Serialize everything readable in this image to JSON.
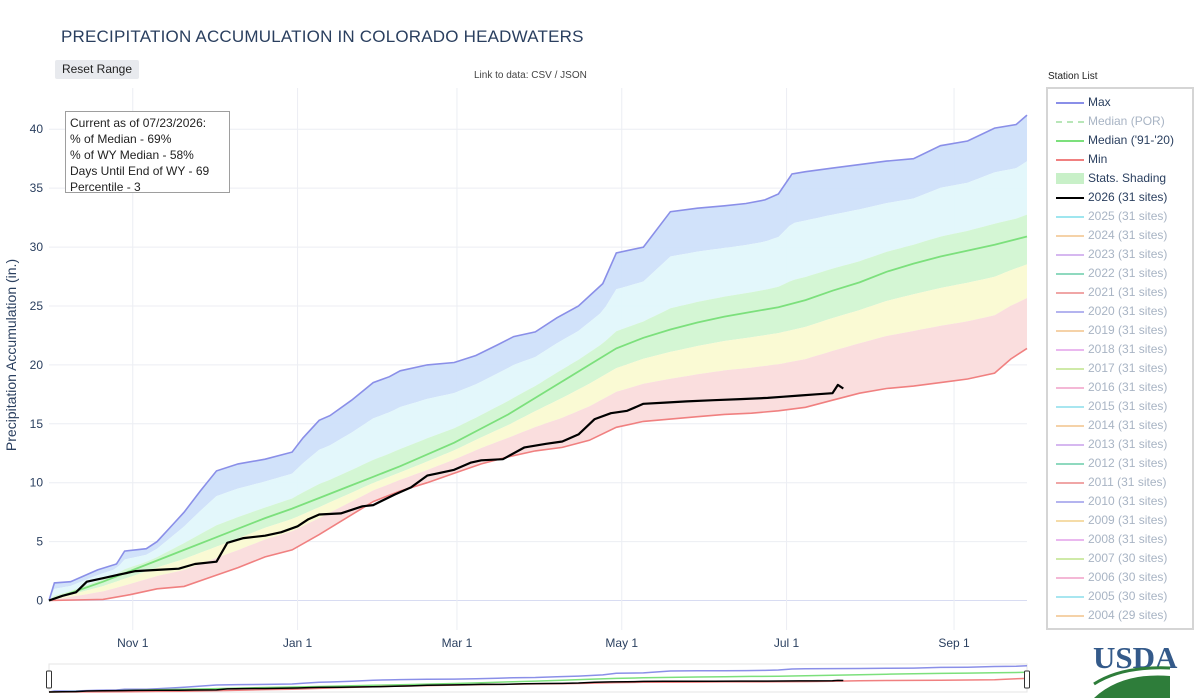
{
  "title": "PRECIPITATION ACCUMULATION IN COLORADO HEADWATERS",
  "reset_label": "Reset Range",
  "datalink": {
    "prefix": "Link to data: ",
    "csv": "CSV",
    "sep": " / ",
    "json": "JSON"
  },
  "station_list_label": "Station List",
  "annotation": {
    "line1": "Current as of 07/23/2026:",
    "line2": "% of Median - 69%",
    "line3": "% of WY Median - 58%",
    "line4": "Days Until End of WY - 69",
    "line5": "Percentile - 3"
  },
  "logo_text": "USDA",
  "colors": {
    "max": "#8a8fe8",
    "median": "#90ee90",
    "min": "#f08080",
    "current": "#000000",
    "band_blue": "#cfe0fa",
    "band_cyan": "#e1f7fb",
    "band_green": "#d2f5d2",
    "band_yellow": "#fafad2",
    "band_pink": "#fadcdc"
  },
  "legend": [
    {
      "label": "Max",
      "color": "#8a8fe8",
      "style": "solid",
      "muted": false
    },
    {
      "label": "Median (POR)",
      "color": "#b8e6b8",
      "style": "dash",
      "muted": true
    },
    {
      "label": "Median ('91-'20)",
      "color": "#7ce07c",
      "style": "solid",
      "muted": false
    },
    {
      "label": "Min",
      "color": "#f08080",
      "style": "solid",
      "muted": false
    },
    {
      "label": "Stats. Shading",
      "color": "#c8f0c8",
      "style": "box",
      "muted": false
    },
    {
      "label": "2026 (31 sites)",
      "color": "#000000",
      "style": "solid",
      "muted": false
    },
    {
      "label": "2025 (31 sites)",
      "color": "#9fe6ef",
      "style": "solid",
      "muted": true
    },
    {
      "label": "2024 (31 sites)",
      "color": "#f5d2a8",
      "style": "solid",
      "muted": true
    },
    {
      "label": "2023 (31 sites)",
      "color": "#d6b8f0",
      "style": "solid",
      "muted": true
    },
    {
      "label": "2022 (31 sites)",
      "color": "#8fd9bf",
      "style": "solid",
      "muted": true
    },
    {
      "label": "2021 (31 sites)",
      "color": "#f0a6a6",
      "style": "solid",
      "muted": true
    },
    {
      "label": "2020 (31 sites)",
      "color": "#b4b4ef",
      "style": "solid",
      "muted": true
    },
    {
      "label": "2019 (31 sites)",
      "color": "#f5d2a8",
      "style": "solid",
      "muted": true
    },
    {
      "label": "2018 (31 sites)",
      "color": "#eab8ef",
      "style": "solid",
      "muted": true
    },
    {
      "label": "2017 (31 sites)",
      "color": "#cfeaa8",
      "style": "solid",
      "muted": true
    },
    {
      "label": "2016 (31 sites)",
      "color": "#f4b8d6",
      "style": "solid",
      "muted": true
    },
    {
      "label": "2015 (31 sites)",
      "color": "#a8e6f0",
      "style": "solid",
      "muted": true
    },
    {
      "label": "2014 (31 sites)",
      "color": "#f5d2a8",
      "style": "solid",
      "muted": true
    },
    {
      "label": "2013 (31 sites)",
      "color": "#d6b8f0",
      "style": "solid",
      "muted": true
    },
    {
      "label": "2012 (31 sites)",
      "color": "#8fd9bf",
      "style": "solid",
      "muted": true
    },
    {
      "label": "2011 (31 sites)",
      "color": "#f0a6a6",
      "style": "solid",
      "muted": true
    },
    {
      "label": "2010 (31 sites)",
      "color": "#b4b4ef",
      "style": "solid",
      "muted": true
    },
    {
      "label": "2009 (31 sites)",
      "color": "#f5dca8",
      "style": "solid",
      "muted": true
    },
    {
      "label": "2008 (31 sites)",
      "color": "#eab8ef",
      "style": "solid",
      "muted": true
    },
    {
      "label": "2007 (30 sites)",
      "color": "#cfeaa8",
      "style": "solid",
      "muted": true
    },
    {
      "label": "2006 (30 sites)",
      "color": "#f4b8d6",
      "style": "solid",
      "muted": true
    },
    {
      "label": "2005 (30 sites)",
      "color": "#a8e6f0",
      "style": "solid",
      "muted": true
    },
    {
      "label": "2004 (29 sites)",
      "color": "#f5d2a8",
      "style": "solid",
      "muted": true
    }
  ],
  "chart_data": {
    "type": "area",
    "title": "PRECIPITATION ACCUMULATION IN COLORADO HEADWATERS",
    "ylabel": "Precipitation Accumulation (in.)",
    "ylim": [
      -2.5,
      43.5
    ],
    "xlim_days": [
      0,
      362
    ],
    "yticks": [
      0,
      5,
      10,
      15,
      20,
      25,
      30,
      35,
      40
    ],
    "xticks": [
      {
        "label": "Nov 1",
        "day": 31
      },
      {
        "label": "Jan 1",
        "day": 92
      },
      {
        "label": "Mar 1",
        "day": 151
      },
      {
        "label": "May 1",
        "day": 212
      },
      {
        "label": "Jul 1",
        "day": 273
      },
      {
        "label": "Sep 1",
        "day": 335
      }
    ],
    "grid": true,
    "legend_position": "right",
    "series": [
      {
        "name": "Max",
        "x": [
          0,
          2,
          8,
          12,
          18,
          25,
          28,
          36,
          40,
          46,
          50,
          56,
          62,
          70,
          80,
          90,
          94,
          100,
          104,
          112,
          120,
          126,
          130,
          140,
          150,
          158,
          166,
          172,
          180,
          188,
          196,
          205,
          210,
          220,
          230,
          240,
          250,
          258,
          265,
          270,
          275,
          280,
          290,
          300,
          310,
          320,
          330,
          340,
          350,
          358,
          362
        ],
        "y": [
          0,
          1.5,
          1.6,
          2.0,
          2.6,
          3.1,
          4.2,
          4.4,
          5.0,
          6.5,
          7.5,
          9.3,
          11.0,
          11.6,
          12.0,
          12.6,
          13.8,
          15.3,
          15.7,
          17.0,
          18.5,
          19.0,
          19.5,
          20.0,
          20.2,
          20.8,
          21.7,
          22.4,
          22.8,
          24.0,
          25.0,
          26.9,
          29.5,
          30.0,
          33.0,
          33.3,
          33.5,
          33.7,
          34.0,
          34.5,
          36.2,
          36.4,
          36.7,
          37.0,
          37.3,
          37.5,
          38.6,
          39.0,
          40.1,
          40.4,
          41.2
        ]
      },
      {
        "name": "Median ('91-'20)",
        "x": [
          0,
          10,
          20,
          30,
          40,
          50,
          60,
          70,
          80,
          90,
          100,
          110,
          120,
          130,
          140,
          150,
          160,
          170,
          180,
          190,
          200,
          210,
          220,
          230,
          240,
          250,
          260,
          270,
          280,
          290,
          300,
          310,
          320,
          330,
          340,
          350,
          362
        ],
        "y": [
          0,
          0.8,
          1.6,
          2.5,
          3.4,
          4.3,
          5.2,
          6.1,
          7.0,
          7.8,
          8.7,
          9.6,
          10.5,
          11.4,
          12.4,
          13.4,
          14.6,
          15.8,
          17.2,
          18.6,
          20.0,
          21.4,
          22.3,
          23.0,
          23.6,
          24.1,
          24.5,
          24.9,
          25.5,
          26.3,
          27.0,
          27.9,
          28.6,
          29.2,
          29.7,
          30.2,
          30.9
        ]
      },
      {
        "name": "Min",
        "x": [
          0,
          20,
          30,
          40,
          50,
          60,
          70,
          80,
          90,
          100,
          110,
          120,
          130,
          140,
          150,
          160,
          170,
          180,
          190,
          200,
          210,
          220,
          230,
          240,
          250,
          260,
          270,
          280,
          290,
          300,
          310,
          320,
          330,
          340,
          350,
          356,
          362
        ],
        "y": [
          0,
          0.1,
          0.5,
          1.0,
          1.2,
          2.0,
          2.8,
          3.7,
          4.3,
          5.6,
          7.0,
          8.4,
          9.3,
          10.0,
          10.8,
          11.6,
          12.2,
          12.7,
          13.0,
          13.6,
          14.7,
          15.2,
          15.4,
          15.6,
          15.8,
          15.9,
          16.1,
          16.4,
          17.0,
          17.6,
          18.0,
          18.2,
          18.5,
          18.8,
          19.3,
          20.5,
          21.4
        ]
      },
      {
        "name": "2026 (31 sites)",
        "x": [
          0,
          5,
          10,
          14,
          20,
          26,
          32,
          40,
          48,
          54,
          62,
          66,
          72,
          80,
          86,
          92,
          96,
          100,
          108,
          116,
          120,
          128,
          134,
          140,
          144,
          150,
          156,
          160,
          168,
          176,
          184,
          190,
          196,
          202,
          208,
          214,
          220,
          228,
          236,
          246,
          256,
          266,
          272,
          278,
          284,
          290,
          292,
          294
        ],
        "y": [
          0,
          0.4,
          0.7,
          1.6,
          1.9,
          2.2,
          2.5,
          2.6,
          2.7,
          3.1,
          3.3,
          4.9,
          5.3,
          5.5,
          5.8,
          6.3,
          6.9,
          7.3,
          7.4,
          8.0,
          8.1,
          9.0,
          9.6,
          10.6,
          10.8,
          11.1,
          11.7,
          11.9,
          12.0,
          13.0,
          13.3,
          13.5,
          14.1,
          15.4,
          15.9,
          16.1,
          16.7,
          16.8,
          16.9,
          17.0,
          17.1,
          17.2,
          17.3,
          17.4,
          17.5,
          17.6,
          18.3,
          18.0
        ]
      }
    ]
  }
}
